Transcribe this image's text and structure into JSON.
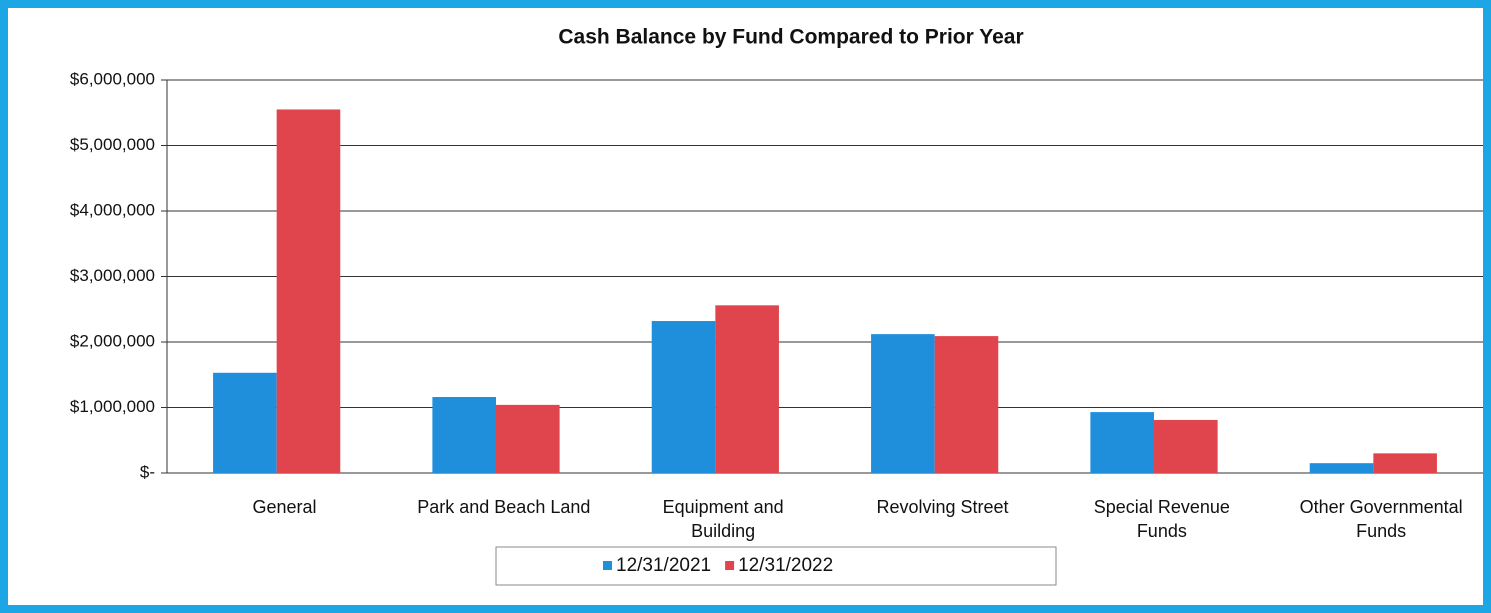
{
  "chart_data": {
    "type": "bar",
    "title": "Cash Balance by Fund Compared to Prior Year",
    "categories": [
      "General",
      "Park and Beach Land",
      "Equipment and\nBuilding",
      "Revolving Street",
      "Special Revenue\nFunds",
      "Other Governmental\nFunds"
    ],
    "series": [
      {
        "name": "12/31/2021",
        "color": "#1f8fdc",
        "values": [
          1530000,
          1160000,
          2320000,
          2120000,
          930000,
          150000
        ]
      },
      {
        "name": "12/31/2022",
        "color": "#e0444c",
        "values": [
          5550000,
          1040000,
          2560000,
          2090000,
          810000,
          300000
        ]
      }
    ],
    "ylim": [
      0,
      6000000
    ],
    "yticks": [
      {
        "value": 0,
        "label": "$-"
      },
      {
        "value": 1000000,
        "label": "$1,000,000"
      },
      {
        "value": 2000000,
        "label": "$2,000,000"
      },
      {
        "value": 3000000,
        "label": "$3,000,000"
      },
      {
        "value": 4000000,
        "label": "$4,000,000"
      },
      {
        "value": 5000000,
        "label": "$5,000,000"
      },
      {
        "value": 6000000,
        "label": "$6,000,000"
      }
    ],
    "grid": true,
    "legend": "bottom"
  }
}
